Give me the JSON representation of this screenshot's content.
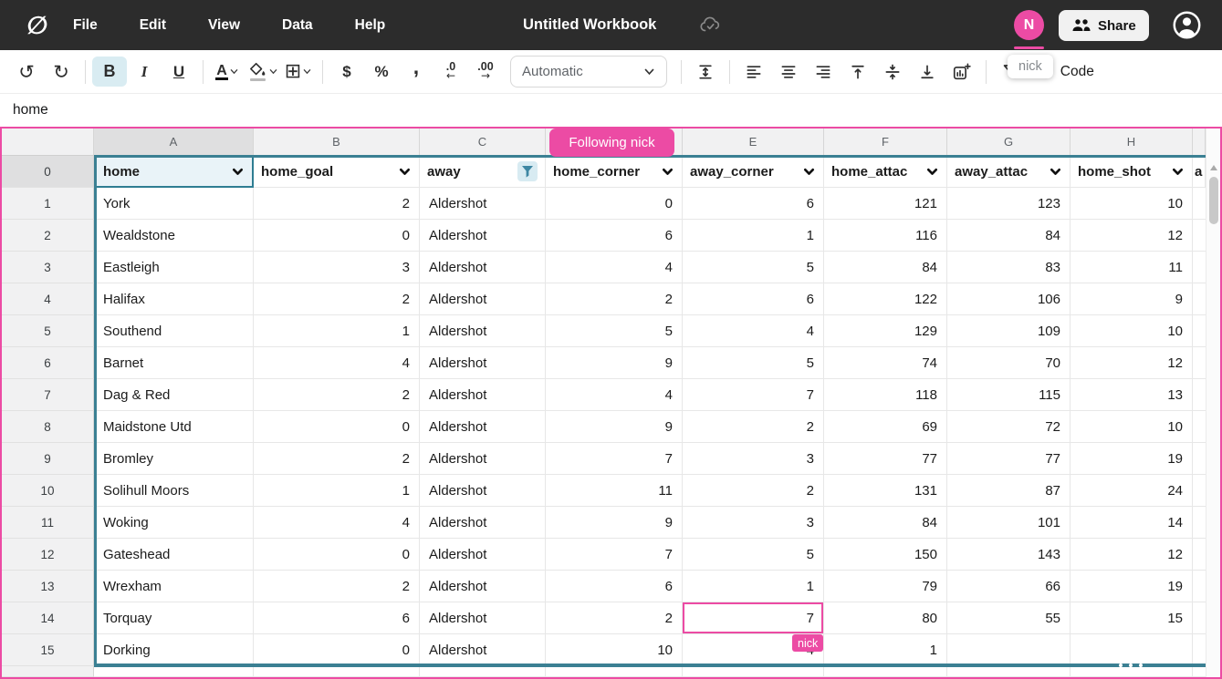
{
  "menubar": {
    "menus": [
      "File",
      "Edit",
      "View",
      "Data",
      "Help"
    ],
    "title": "Untitled Workbook",
    "avatar_initial": "N",
    "share_label": "Share"
  },
  "toolbar": {
    "bold": "B",
    "italic": "I",
    "underline": "U",
    "text_color": "A",
    "currency": "$",
    "percent": "%",
    "comma": ",",
    "decrease_decimal": ".0",
    "increase_decimal": ".00",
    "format_selected": "Automatic",
    "code_glyph": "</>",
    "code_label": "Code",
    "tooltip": "nick"
  },
  "formula_bar": {
    "value": "home"
  },
  "sheet": {
    "following_badge": "Following nick",
    "presence_tag": "nick",
    "column_letters": [
      "A",
      "B",
      "C",
      "D",
      "E",
      "F",
      "G",
      "H"
    ],
    "selected_row_header": "0",
    "header_cells": [
      "home",
      "home_goal",
      "away",
      "home_corner",
      "away_corner",
      "home_attac",
      "away_attac",
      "home_shot"
    ],
    "partial_header_cell": "a",
    "rows": [
      {
        "n": "1",
        "cells": [
          "York",
          "2",
          "Aldershot",
          "0",
          "6",
          "121",
          "123",
          "10"
        ]
      },
      {
        "n": "2",
        "cells": [
          "Wealdstone",
          "0",
          "Aldershot",
          "6",
          "1",
          "116",
          "84",
          "12"
        ]
      },
      {
        "n": "3",
        "cells": [
          "Eastleigh",
          "3",
          "Aldershot",
          "4",
          "5",
          "84",
          "83",
          "11"
        ]
      },
      {
        "n": "4",
        "cells": [
          "Halifax",
          "2",
          "Aldershot",
          "2",
          "6",
          "122",
          "106",
          "9"
        ]
      },
      {
        "n": "5",
        "cells": [
          "Southend",
          "1",
          "Aldershot",
          "5",
          "4",
          "129",
          "109",
          "10"
        ]
      },
      {
        "n": "6",
        "cells": [
          "Barnet",
          "4",
          "Aldershot",
          "9",
          "5",
          "74",
          "70",
          "12"
        ]
      },
      {
        "n": "7",
        "cells": [
          "Dag & Red",
          "2",
          "Aldershot",
          "4",
          "7",
          "118",
          "115",
          "13"
        ]
      },
      {
        "n": "8",
        "cells": [
          "Maidstone Utd",
          "0",
          "Aldershot",
          "9",
          "2",
          "69",
          "72",
          "10"
        ]
      },
      {
        "n": "9",
        "cells": [
          "Bromley",
          "2",
          "Aldershot",
          "7",
          "3",
          "77",
          "77",
          "19"
        ]
      },
      {
        "n": "10",
        "cells": [
          "Solihull Moors",
          "1",
          "Aldershot",
          "11",
          "2",
          "131",
          "87",
          "24"
        ]
      },
      {
        "n": "11",
        "cells": [
          "Woking",
          "4",
          "Aldershot",
          "9",
          "3",
          "84",
          "101",
          "14"
        ]
      },
      {
        "n": "12",
        "cells": [
          "Gateshead",
          "0",
          "Aldershot",
          "7",
          "5",
          "150",
          "143",
          "12"
        ]
      },
      {
        "n": "13",
        "cells": [
          "Wrexham",
          "2",
          "Aldershot",
          "6",
          "1",
          "79",
          "66",
          "19"
        ]
      },
      {
        "n": "14",
        "cells": [
          "Torquay",
          "6",
          "Aldershot",
          "2",
          "7",
          "80",
          "55",
          "15"
        ]
      },
      {
        "n": "15",
        "cells": [
          "Dorking",
          "0",
          "Aldershot",
          "10",
          "4",
          "1",
          "",
          ""
        ]
      }
    ],
    "selected_cell": {
      "row": 14,
      "column": "E",
      "value": "7"
    }
  },
  "colors": {
    "accent_pink": "#ec4ba4",
    "table_teal": "#3b8093",
    "selection_teal": "#2e7d92",
    "active_button_bg": "#d9ecf2",
    "topbar_bg": "#2c2c2c"
  }
}
